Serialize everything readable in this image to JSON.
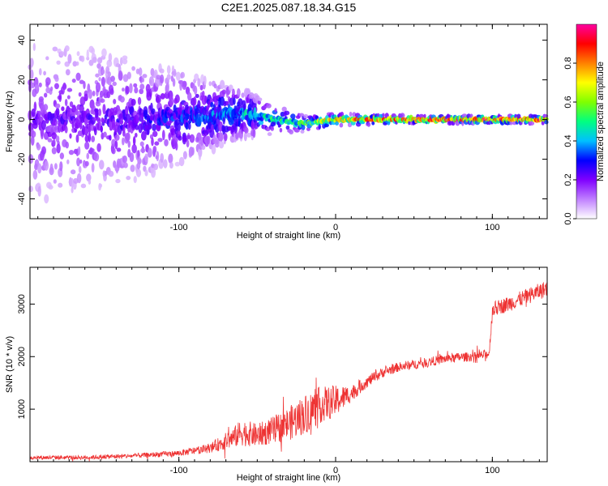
{
  "title": "C2E1.2025.087.18.34.G15",
  "chart_data": [
    {
      "type": "heatmap",
      "xlabel": "Height of straight line (km)",
      "ylabel": "Frequency (Hz)",
      "xlim": [
        -195,
        135
      ],
      "ylim": [
        -50,
        48
      ],
      "xticks": [
        -100,
        0,
        100
      ],
      "yticks": [
        -40,
        -20,
        0,
        20,
        40
      ],
      "grid": false,
      "description_points": [
        {
          "x": -190,
          "freq_center": 0,
          "spread": 45,
          "amplitude": 0.22
        },
        {
          "x": -120,
          "freq_center": 0,
          "spread": 30,
          "amplitude": 0.28
        },
        {
          "x": -60,
          "freq_center": 3,
          "spread": 12,
          "amplitude": 0.45
        },
        {
          "x": -20,
          "freq_center": -2,
          "spread": 4,
          "amplitude": 0.6
        },
        {
          "x": 0,
          "freq_center": 0,
          "spread": 3,
          "amplitude": 0.85
        },
        {
          "x": 50,
          "freq_center": 0,
          "spread": 2,
          "amplitude": 0.95
        },
        {
          "x": 130,
          "freq_center": 0,
          "spread": 2,
          "amplitude": 0.95
        }
      ],
      "colorbar": {
        "label": "Normalized spectral amplitude",
        "range": [
          0,
          1
        ],
        "ticks": [
          "0.0",
          "0.2",
          "0.4",
          "0.6",
          "0.8"
        ],
        "colors": [
          "#ffffff",
          "#c080ff",
          "#8000ff",
          "#0000ff",
          "#00c0ff",
          "#00ff80",
          "#80ff00",
          "#ffff00",
          "#ff8000",
          "#ff0000",
          "#ff00a0"
        ]
      }
    },
    {
      "type": "line",
      "xlabel": "Height of straight line (km)",
      "ylabel": "SNR (10 * v/v)",
      "xlim": [
        -195,
        135
      ],
      "ylim": [
        0,
        3700
      ],
      "xticks": [
        -100,
        0,
        100
      ],
      "yticks": [
        1000,
        2000,
        3000
      ],
      "grid": false,
      "series": [
        {
          "color": "#ee3333",
          "x": [
            -195,
            -160,
            -130,
            -100,
            -80,
            -65,
            -60,
            -50,
            -40,
            -30,
            -20,
            -10,
            0,
            10,
            20,
            30,
            40,
            50,
            60,
            70,
            80,
            90,
            98,
            100,
            110,
            120,
            135
          ],
          "y": [
            80,
            80,
            110,
            160,
            260,
            460,
            560,
            500,
            600,
            720,
            900,
            1080,
            1150,
            1300,
            1520,
            1700,
            1800,
            1850,
            1900,
            1960,
            1990,
            2000,
            2060,
            2900,
            3000,
            3120,
            3300
          ],
          "noise": [
            40,
            40,
            45,
            55,
            90,
            200,
            260,
            220,
            260,
            320,
            380,
            350,
            300,
            160,
            110,
            100,
            90,
            90,
            90,
            90,
            90,
            90,
            90,
            140,
            150,
            150,
            160
          ]
        }
      ]
    }
  ]
}
